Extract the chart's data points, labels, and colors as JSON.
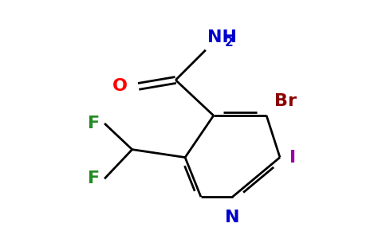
{
  "bg_color": "#ffffff",
  "atom_colors": {
    "N_ring": "#0000cc",
    "N_amide": "#0000cc",
    "O": "#ff0000",
    "Br": "#8b0000",
    "I": "#9900aa",
    "F": "#228b22",
    "C": "#000000"
  },
  "figsize": [
    4.84,
    3.0
  ],
  "dpi": 100
}
